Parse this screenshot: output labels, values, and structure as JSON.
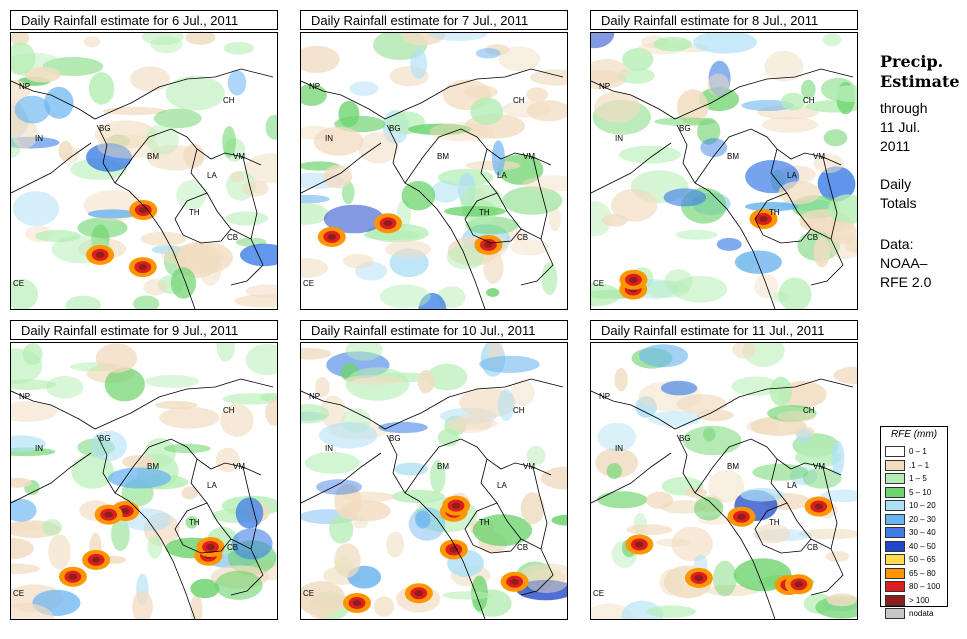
{
  "panels": [
    {
      "title": "Daily Rainfall estimate for  6 Jul., 2011"
    },
    {
      "title": "Daily Rainfall estimate for  7 Jul., 2011"
    },
    {
      "title": "Daily Rainfall estimate for  8 Jul., 2011"
    },
    {
      "title": "Daily Rainfall estimate for  9 Jul., 2011"
    },
    {
      "title": "Daily Rainfall estimate for  10 Jul., 2011"
    },
    {
      "title": "Daily Rainfall estimate for  11 Jul., 2011"
    }
  ],
  "map_labels": [
    "NP",
    "CH",
    "IN",
    "BG",
    "BM",
    "VM",
    "LA",
    "TH",
    "CB",
    "CE"
  ],
  "sidebar": {
    "title_line1": "Precip.",
    "title_line2": "Estimate",
    "through": "through",
    "date_line1": "11 Jul.",
    "date_line2": "2011",
    "daily1": "Daily",
    "daily2": "Totals",
    "data1": "Data:",
    "data2": "NOAA–",
    "data3": "RFE 2.0"
  },
  "legend": {
    "title": "RFE (mm)",
    "items": [
      {
        "label": "0 – 1",
        "color": "#ffffff"
      },
      {
        "label": ".1 – 1",
        "color": "#f1dcc0"
      },
      {
        "label": "1 – 5",
        "color": "#b4eeb4"
      },
      {
        "label": "5 – 10",
        "color": "#6ed46e"
      },
      {
        "label": "10 – 20",
        "color": "#aee0f5"
      },
      {
        "label": "20 – 30",
        "color": "#6ab4f0"
      },
      {
        "label": "30 – 40",
        "color": "#3c7ee6"
      },
      {
        "label": "40 – 50",
        "color": "#1e46c8"
      },
      {
        "label": "50 – 65",
        "color": "#ffdc50"
      },
      {
        "label": "65 – 80",
        "color": "#ff9600"
      },
      {
        "label": "80 – 100",
        "color": "#dc1e1e"
      },
      {
        "label": "> 100",
        "color": "#8c1e1e"
      },
      {
        "label": "nodata",
        "color": "#c8c8c8"
      }
    ]
  }
}
